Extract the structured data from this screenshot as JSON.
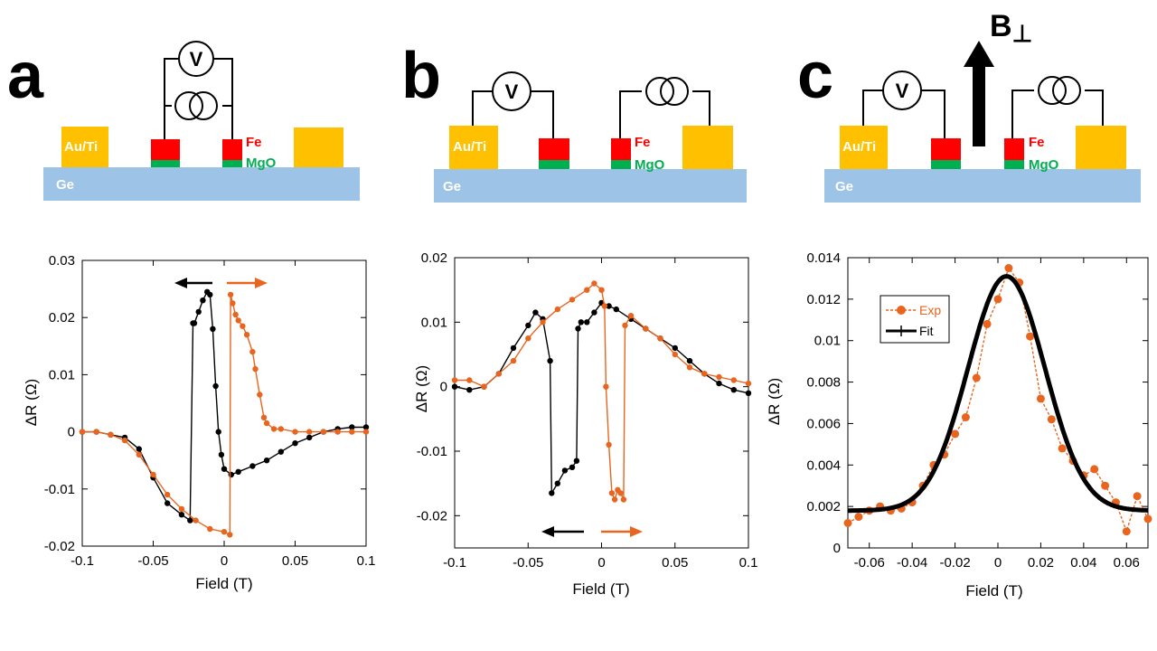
{
  "panels": [
    {
      "letter": "a",
      "device": {
        "substrate": "Ge",
        "contact": "Au/Ti",
        "ferromagnet": "Fe",
        "barrier": "MgO",
        "meter": "V"
      },
      "chart_data": {
        "type": "line",
        "xlabel": "Field (T)",
        "ylabel": "ΔR (Ω)",
        "xlim": [
          -0.1,
          0.1
        ],
        "ylim": [
          -0.02,
          0.03
        ],
        "xticks": [
          -0.1,
          -0.05,
          0,
          0.05,
          0.1
        ],
        "xtick_labels": [
          "-0.1",
          "-0.05",
          "0",
          "0.05",
          "0.1"
        ],
        "yticks": [
          -0.02,
          -0.01,
          0,
          0.01,
          0.02,
          0.03
        ],
        "ytick_labels": [
          "-0.02",
          "-0.01",
          "0",
          "0.01",
          "0.02",
          "0.03"
        ],
        "series": [
          {
            "name": "sweep down",
            "color": "#000000",
            "x": [
              0.1,
              0.09,
              0.08,
              0.07,
              0.06,
              0.05,
              0.04,
              0.03,
              0.02,
              0.01,
              0.005,
              0.0,
              -0.002,
              -0.004,
              -0.006,
              -0.008,
              -0.01,
              -0.012,
              -0.015,
              -0.018,
              -0.021,
              -0.022,
              -0.024,
              -0.03,
              -0.04,
              -0.05,
              -0.06,
              -0.07,
              -0.08,
              -0.09,
              -0.1
            ],
            "y": [
              0.0008,
              0.0008,
              0.0005,
              0.0,
              -0.001,
              -0.002,
              -0.0035,
              -0.005,
              -0.006,
              -0.007,
              -0.0075,
              -0.0065,
              -0.004,
              0.0,
              0.008,
              0.018,
              0.024,
              0.0245,
              0.023,
              0.021,
              0.019,
              0.019,
              -0.0155,
              -0.0145,
              -0.0125,
              -0.008,
              -0.003,
              -0.001,
              -0.0005,
              0.0,
              0.0
            ]
          },
          {
            "name": "sweep up",
            "color": "#e8651f",
            "x": [
              -0.1,
              -0.09,
              -0.08,
              -0.07,
              -0.06,
              -0.05,
              -0.04,
              -0.03,
              -0.02,
              -0.01,
              0.0,
              0.004,
              0.0045,
              0.006,
              0.008,
              0.01,
              0.013,
              0.016,
              0.02,
              0.022,
              0.025,
              0.028,
              0.03,
              0.035,
              0.04,
              0.05,
              0.06,
              0.07,
              0.08,
              0.09,
              0.1
            ],
            "y": [
              0.0,
              0.0,
              -0.0005,
              -0.0015,
              -0.004,
              -0.0075,
              -0.011,
              -0.0135,
              -0.0155,
              -0.017,
              -0.0175,
              -0.018,
              0.024,
              0.0225,
              0.0205,
              0.0195,
              0.0185,
              0.017,
              0.014,
              0.011,
              0.0065,
              0.0025,
              0.0015,
              0.0005,
              0.0005,
              0.0,
              0.0,
              0.0,
              0.0,
              0.0,
              0.0
            ]
          }
        ]
      }
    },
    {
      "letter": "b",
      "device": {
        "substrate": "Ge",
        "contact": "Au/Ti",
        "ferromagnet": "Fe",
        "barrier": "MgO",
        "meter": "V"
      },
      "chart_data": {
        "type": "line",
        "xlabel": "Field (T)",
        "ylabel": "ΔR (Ω)",
        "xlim": [
          -0.1,
          0.1
        ],
        "ylim": [
          -0.025,
          0.02
        ],
        "xticks": [
          -0.1,
          -0.05,
          0,
          0.05,
          0.1
        ],
        "xtick_labels": [
          "-0.1",
          "-0.05",
          "0",
          "0.05",
          "0.1"
        ],
        "yticks": [
          -0.02,
          -0.01,
          0,
          0.01,
          0.02
        ],
        "ytick_labels": [
          "-0.02",
          "-0.01",
          "0",
          "0.01",
          "0.02"
        ],
        "series": [
          {
            "name": "sweep down",
            "color": "#000000",
            "x": [
              0.1,
              0.09,
              0.08,
              0.07,
              0.06,
              0.05,
              0.04,
              0.03,
              0.02,
              0.01,
              0.005,
              0.0,
              -0.005,
              -0.01,
              -0.014,
              -0.016,
              -0.017,
              -0.02,
              -0.025,
              -0.03,
              -0.034,
              -0.035,
              -0.04,
              -0.045,
              -0.05,
              -0.06,
              -0.07,
              -0.08,
              -0.09,
              -0.1
            ],
            "y": [
              -0.001,
              -0.0005,
              0.0005,
              0.002,
              0.004,
              0.006,
              0.0075,
              0.009,
              0.0105,
              0.012,
              0.0125,
              0.013,
              0.0115,
              0.01,
              0.01,
              0.009,
              -0.0115,
              -0.0125,
              -0.013,
              -0.015,
              -0.0165,
              0.004,
              0.0105,
              0.0115,
              0.0095,
              0.006,
              0.002,
              0.0,
              -0.0005,
              0.0
            ]
          },
          {
            "name": "sweep up",
            "color": "#e8651f",
            "x": [
              -0.1,
              -0.09,
              -0.08,
              -0.07,
              -0.06,
              -0.05,
              -0.04,
              -0.03,
              -0.02,
              -0.01,
              -0.005,
              0.0,
              0.002,
              0.003,
              0.005,
              0.007,
              0.009,
              0.011,
              0.013,
              0.015,
              0.016,
              0.02,
              0.03,
              0.04,
              0.05,
              0.06,
              0.07,
              0.08,
              0.09,
              0.1
            ],
            "y": [
              0.001,
              0.001,
              0.0,
              0.002,
              0.004,
              0.0075,
              0.01,
              0.012,
              0.0135,
              0.015,
              0.016,
              0.015,
              0.0125,
              0.0,
              -0.009,
              -0.0165,
              -0.0175,
              -0.016,
              -0.0165,
              -0.0175,
              0.0095,
              0.011,
              0.009,
              0.0075,
              0.005,
              0.003,
              0.002,
              0.0015,
              0.001,
              0.0005
            ]
          }
        ]
      }
    },
    {
      "letter": "c",
      "device": {
        "substrate": "Ge",
        "contact": "Au/Ti",
        "ferromagnet": "Fe",
        "barrier": "MgO",
        "meter": "V",
        "field_label": "B",
        "field_subscript": "⊥"
      },
      "chart_data": {
        "type": "line",
        "xlabel": "Field (T)",
        "ylabel": "ΔR (Ω)",
        "xlim": [
          -0.07,
          0.07
        ],
        "ylim": [
          0,
          0.014
        ],
        "xticks": [
          -0.06,
          -0.04,
          -0.02,
          0,
          0.02,
          0.04,
          0.06
        ],
        "xtick_labels": [
          "-0.06",
          "-0.04",
          "-0.02",
          "0",
          "0.02",
          "0.04",
          "0.06"
        ],
        "yticks": [
          0,
          0.002,
          0.004,
          0.006,
          0.008,
          0.01,
          0.012,
          0.014
        ],
        "ytick_labels": [
          "0",
          "0.002",
          "0.004",
          "0.006",
          "0.008",
          "0.01",
          "0.012",
          "0.014"
        ],
        "legend": {
          "position": "top-left",
          "entries": [
            "Exp",
            "Fit"
          ]
        },
        "series": [
          {
            "name": "Exp",
            "color": "#e8651f",
            "x": [
              -0.07,
              -0.065,
              -0.06,
              -0.055,
              -0.05,
              -0.045,
              -0.04,
              -0.035,
              -0.03,
              -0.025,
              -0.02,
              -0.015,
              -0.01,
              -0.005,
              0.0,
              0.005,
              0.01,
              0.015,
              0.02,
              0.025,
              0.03,
              0.035,
              0.04,
              0.045,
              0.05,
              0.055,
              0.06,
              0.065,
              0.07
            ],
            "y": [
              0.0012,
              0.0015,
              0.0018,
              0.002,
              0.0018,
              0.0019,
              0.0022,
              0.003,
              0.004,
              0.0045,
              0.0055,
              0.0063,
              0.0082,
              0.0108,
              0.012,
              0.0135,
              0.0128,
              0.0102,
              0.0072,
              0.0062,
              0.0048,
              0.0042,
              0.0035,
              0.0038,
              0.003,
              0.0022,
              0.0008,
              0.0025,
              0.0014
            ]
          },
          {
            "name": "Fit",
            "color": "#000000",
            "gaussian": {
              "amplitude": 0.0113,
              "center": 0.004,
              "sigma": 0.018,
              "offset": 0.0018
            }
          }
        ]
      }
    }
  ]
}
